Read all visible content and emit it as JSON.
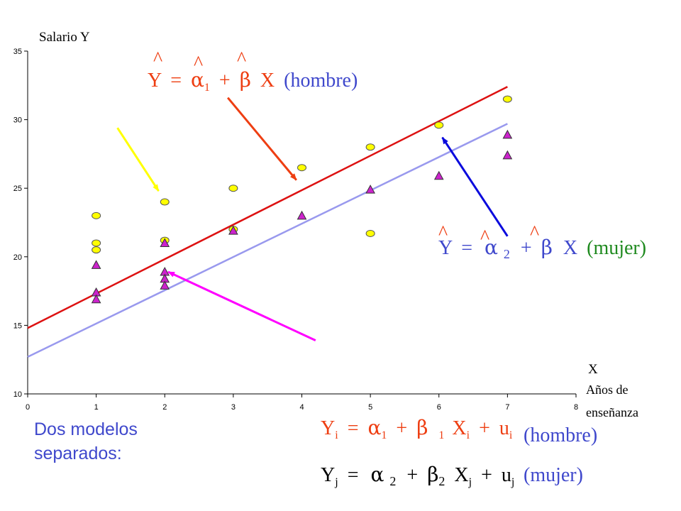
{
  "chart_data": {
    "type": "scatter",
    "xlim": [
      0,
      8
    ],
    "ylim": [
      10,
      35
    ],
    "x_ticks": [
      "0",
      "1",
      "2",
      "3",
      "4",
      "5",
      "6",
      "7",
      "8"
    ],
    "y_ticks": [
      "10",
      "15",
      "20",
      "25",
      "30",
      "35"
    ],
    "ylabel": "Salario Y",
    "xlabel_lines": [
      "X",
      "Años de",
      "enseñanza"
    ],
    "grid": false,
    "series": [
      {
        "marker": "circle",
        "color": "#ffff00",
        "points": [
          [
            1,
            23
          ],
          [
            1,
            21
          ],
          [
            1,
            20.5
          ],
          [
            2,
            24
          ],
          [
            2,
            21.2
          ],
          [
            3,
            25
          ],
          [
            3,
            22
          ],
          [
            4,
            26.5
          ],
          [
            5,
            28
          ],
          [
            5,
            21.7
          ],
          [
            6,
            29.6
          ],
          [
            7,
            31.5
          ]
        ]
      },
      {
        "marker": "triangle",
        "color": "#cc22cc",
        "points": [
          [
            1,
            19.4
          ],
          [
            1,
            17.4
          ],
          [
            1,
            16.9
          ],
          [
            2,
            21
          ],
          [
            2,
            18.9
          ],
          [
            2,
            18.4
          ],
          [
            2,
            17.9
          ],
          [
            3,
            21.9
          ],
          [
            4,
            23
          ],
          [
            5,
            24.9
          ],
          [
            6,
            25.9
          ],
          [
            7,
            28.9
          ],
          [
            7,
            27.4
          ]
        ]
      }
    ],
    "lines": [
      {
        "color": "#dd1111",
        "from": [
          0,
          14.8
        ],
        "to": [
          7,
          32.4
        ]
      },
      {
        "color": "#9999ee",
        "from": [
          0,
          12.7
        ],
        "to": [
          7,
          29.7
        ]
      }
    ],
    "arrows": [
      {
        "color": "#ee3e12",
        "from": [
          2.92,
          31.6
        ],
        "to": [
          3.92,
          25.6
        ]
      },
      {
        "color": "#0b0bdd",
        "from": [
          7,
          21.5
        ],
        "to": [
          6.05,
          28.7
        ]
      },
      {
        "color": "#ff00ff",
        "from": [
          4.2,
          13.9
        ],
        "to": [
          2.05,
          18.9
        ]
      },
      {
        "color": "#ffff00",
        "from": [
          1.31,
          29.4
        ],
        "to": [
          1.91,
          24.8
        ]
      }
    ]
  },
  "equations": {
    "hat": "^",
    "male_fit": {
      "y": "Y",
      "eq": "=",
      "alpha": "α",
      "sub1": "1",
      "plus": "+",
      "beta": "β",
      "x": "X",
      "tag": "(hombre)"
    },
    "female_fit": {
      "y": "Y",
      "eq": "=",
      "alpha": "α",
      "sub2": "2",
      "plus": "+",
      "beta": "β",
      "x": "X",
      "tag": "(mujer)"
    },
    "model_i": {
      "y": "Y",
      "sub_i": "i",
      "eq": "=",
      "alpha": "α",
      "sub1": "1",
      "plus": "+",
      "beta": "β",
      "x": "X",
      "u": "u"
    },
    "model_j": {
      "y": "Y",
      "sub_j": "j",
      "eq": "=",
      "alpha": "α",
      "sub2": "2",
      "plus": "+",
      "beta": "β",
      "x": "X",
      "u": "u"
    },
    "tag_hombre": "(hombre)",
    "tag_mujer": "(mujer)"
  },
  "note": {
    "line1": "Dos modelos",
    "line2": "separados:"
  }
}
